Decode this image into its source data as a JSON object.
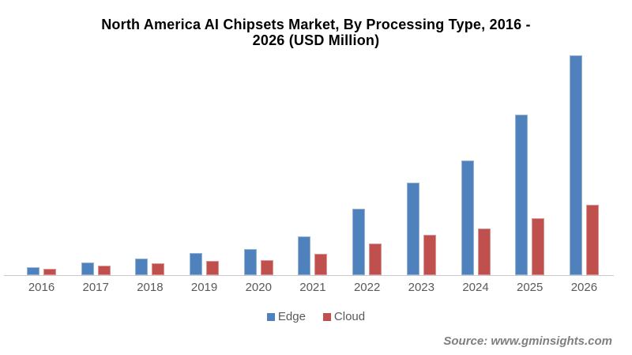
{
  "title": {
    "line1": "North America AI Chipsets Market, By Processing Type, 2016 -",
    "line2": "2026 (USD Million)"
  },
  "source": "Source: www.gminsights.com",
  "legend": {
    "items": [
      {
        "label": "Edge",
        "color": "#4F81BD"
      },
      {
        "label": "Cloud",
        "color": "#C0504D"
      }
    ]
  },
  "chart_data": {
    "type": "bar",
    "title": "North America AI Chipsets Market, By Processing Type, 2016 - 2026 (USD Million)",
    "categories": [
      "2016",
      "2017",
      "2018",
      "2019",
      "2020",
      "2021",
      "2022",
      "2023",
      "2024",
      "2025",
      "2026"
    ],
    "series": [
      {
        "name": "Edge",
        "color": "#4F81BD",
        "border_color": "#95B3D7",
        "values": [
          10,
          16,
          21,
          28,
          33,
          49,
          84,
          117,
          145,
          203,
          278
        ]
      },
      {
        "name": "Cloud",
        "color": "#C0504D",
        "border_color": "#D99694",
        "values": [
          8,
          12,
          15,
          18,
          19,
          27,
          40,
          51,
          59,
          72,
          89
        ]
      }
    ],
    "values_unit": "relative height units (y-axis not labeled in image; estimated from bar pixel heights)",
    "xlabel": "",
    "ylabel": "",
    "ylim": [
      0,
      280
    ],
    "grid": false,
    "legend_position": "bottom"
  },
  "colors": {
    "background": "#ffffff",
    "axis_line": "#c9c9c9",
    "label_text": "#595959",
    "legend_text": "#595959",
    "source_text": "#7f7f7f",
    "title_text": "#000000"
  }
}
